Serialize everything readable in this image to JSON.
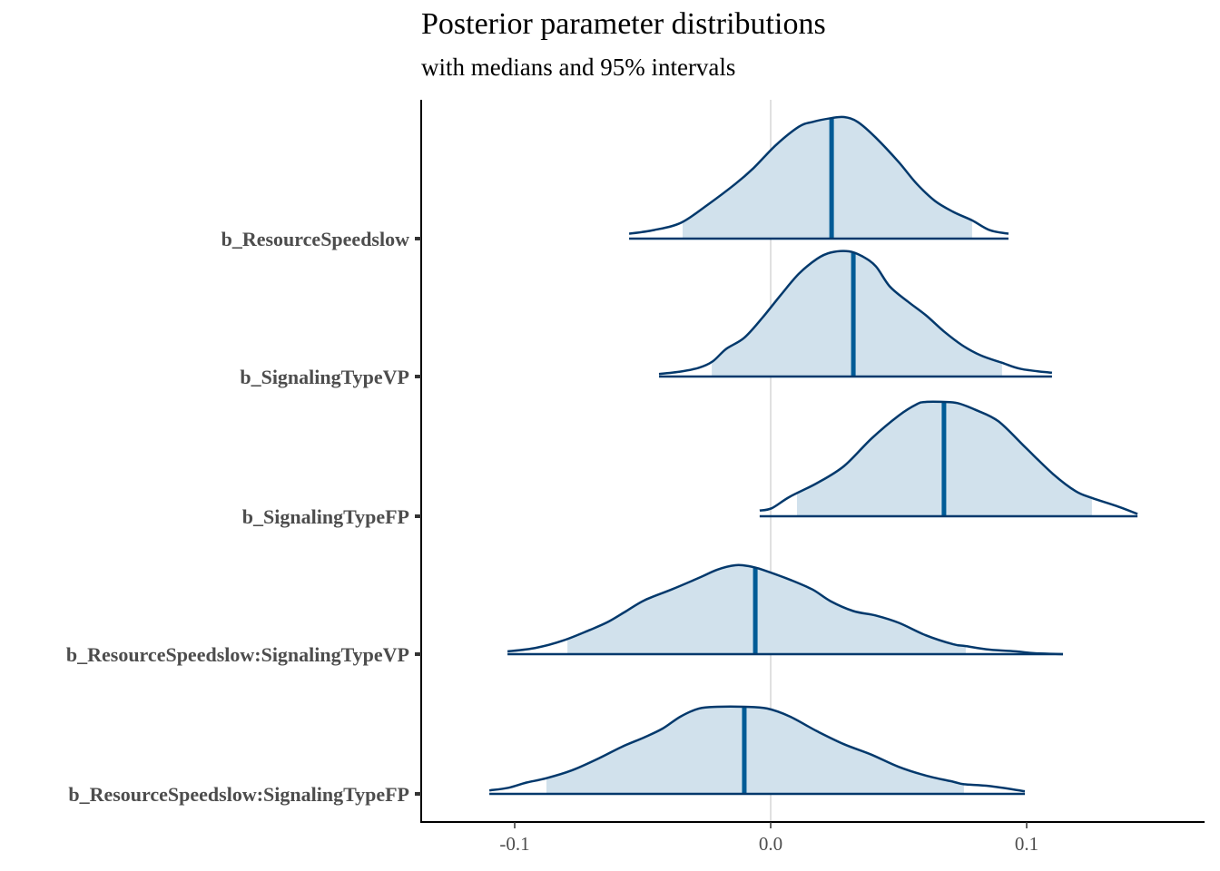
{
  "chart_data": {
    "type": "area",
    "title": "Posterior parameter distributions",
    "subtitle": "with medians and 95% intervals",
    "xlabel": "",
    "ylabel": "",
    "xlim": [
      -0.137,
      0.17
    ],
    "x_ticks": [
      -0.1,
      0.0,
      0.1
    ],
    "x_tick_labels": [
      "-0.1",
      "0.0",
      "0.1"
    ],
    "grid": "vertical line at 0.0 only",
    "legend": "none",
    "colors": {
      "outline": "#03396c",
      "fill": "#d1e1ec",
      "median": "#005b96",
      "zero_line": "#e0e0e0",
      "axis": "#000000",
      "label": "#4d4d4d"
    },
    "series": [
      {
        "name": "b_ResourceSpeedslow",
        "median": 0.0238,
        "interval_95": [
          -0.0344,
          0.0787
        ],
        "x": [
          -0.0553,
          -0.0457,
          -0.0351,
          -0.0245,
          -0.0138,
          -0.0067,
          0.0021,
          0.011,
          0.0163,
          0.0234,
          0.0287,
          0.034,
          0.0411,
          0.05,
          0.0571,
          0.0642,
          0.0713,
          0.0787,
          0.0855,
          0.0929
        ],
        "density": [
          0.04,
          0.07,
          0.13,
          0.28,
          0.45,
          0.58,
          0.77,
          0.92,
          0.96,
          0.99,
          1.0,
          0.96,
          0.83,
          0.63,
          0.45,
          0.31,
          0.22,
          0.15,
          0.07,
          0.04
        ]
      },
      {
        "name": "b_SignalingTypeVP",
        "median": 0.0323,
        "interval_95": [
          -0.023,
          0.0904
        ],
        "x": [
          -0.0436,
          -0.0351,
          -0.028,
          -0.0227,
          -0.0174,
          -0.0103,
          -0.0032,
          0.0039,
          0.011,
          0.0181,
          0.0234,
          0.0305,
          0.0358,
          0.0411,
          0.0465,
          0.0535,
          0.0606,
          0.0677,
          0.0748,
          0.0819,
          0.0904,
          0.0979,
          0.1099
        ],
        "density": [
          0.02,
          0.04,
          0.07,
          0.12,
          0.22,
          0.31,
          0.47,
          0.65,
          0.82,
          0.94,
          0.99,
          1.0,
          0.96,
          0.88,
          0.72,
          0.6,
          0.49,
          0.36,
          0.25,
          0.17,
          0.11,
          0.06,
          0.03
        ]
      },
      {
        "name": "b_SignalingTypeFP",
        "median": 0.0677,
        "interval_95": [
          0.0103,
          0.1255
        ],
        "x": [
          -0.0043,
          0.0004,
          0.0074,
          0.0181,
          0.0287,
          0.0394,
          0.05,
          0.0571,
          0.0606,
          0.0677,
          0.073,
          0.0801,
          0.089,
          0.0996,
          0.1103,
          0.1191,
          0.1255,
          0.1351,
          0.1433
        ],
        "density": [
          0.05,
          0.07,
          0.17,
          0.29,
          0.44,
          0.68,
          0.88,
          0.98,
          1.0,
          1.0,
          0.99,
          0.93,
          0.83,
          0.6,
          0.37,
          0.22,
          0.16,
          0.09,
          0.02
        ]
      },
      {
        "name": "b_ResourceSpeedslow:SignalingTypeVP",
        "median": -0.006,
        "interval_95": [
          -0.0794,
          0.0762
        ],
        "x": [
          -0.1028,
          -0.0918,
          -0.0812,
          -0.0706,
          -0.0635,
          -0.0564,
          -0.0493,
          -0.0387,
          -0.028,
          -0.0209,
          -0.0138,
          -0.0085,
          -0.0032,
          0.0074,
          0.0163,
          0.0234,
          0.0323,
          0.0411,
          0.05,
          0.0606,
          0.0713,
          0.0762,
          0.0855,
          0.0961,
          0.1032,
          0.1142
        ],
        "density": [
          0.03,
          0.07,
          0.15,
          0.27,
          0.36,
          0.48,
          0.6,
          0.72,
          0.85,
          0.94,
          0.99,
          0.98,
          0.94,
          0.83,
          0.72,
          0.59,
          0.48,
          0.43,
          0.35,
          0.21,
          0.11,
          0.09,
          0.05,
          0.03,
          0.01,
          0.0
        ]
      },
      {
        "name": "b_ResourceSpeedslow:SignalingTypeFP",
        "median": -0.0103,
        "interval_95": [
          -0.0876,
          0.0755
        ],
        "x": [
          -0.1099,
          -0.1025,
          -0.0954,
          -0.0876,
          -0.0777,
          -0.067,
          -0.0582,
          -0.0493,
          -0.0422,
          -0.0351,
          -0.028,
          -0.0209,
          -0.0103,
          -0.0014,
          0.0074,
          0.0181,
          0.0287,
          0.0394,
          0.05,
          0.0606,
          0.0713,
          0.0755,
          0.0855,
          0.0993
        ],
        "density": [
          0.04,
          0.07,
          0.13,
          0.18,
          0.27,
          0.41,
          0.54,
          0.65,
          0.75,
          0.89,
          0.98,
          1.0,
          1.0,
          0.98,
          0.89,
          0.72,
          0.57,
          0.45,
          0.31,
          0.21,
          0.14,
          0.11,
          0.09,
          0.03
        ]
      }
    ]
  }
}
